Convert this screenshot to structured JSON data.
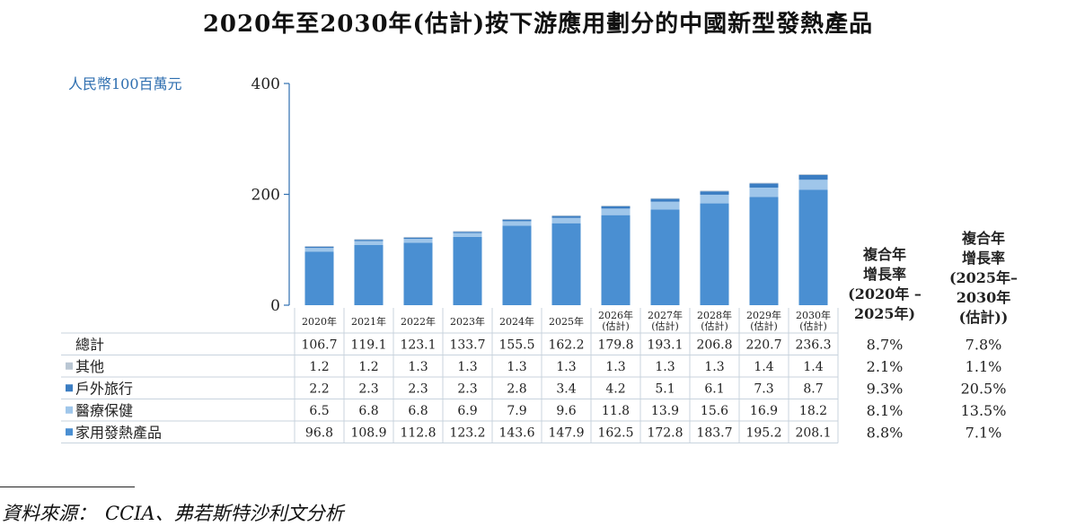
{
  "title": "2020年至2030年(估計)按下游應用劃分的中國新型發熱產品",
  "unit_label": "人民幣100百萬元",
  "cagr_headers": [
    [
      "複合年",
      "增長率",
      "(2020年 –",
      "2025年)"
    ],
    [
      "複合年",
      "增長率",
      "(2025年–",
      "2030年",
      "(估計))"
    ]
  ],
  "source": {
    "label": "資料來源：",
    "text": "CCIA、弗若斯特沙利文分析"
  },
  "colors": {
    "家用發熱產品": "#4a8fd2",
    "醫療保健": "#9fc6ea",
    "戶外旅行": "#3b7dc2",
    "其他": "#b9c6d3",
    "axis": "#2f6fb0",
    "table_line": "#c8d3de"
  },
  "chart_data": {
    "type": "bar",
    "stacked": true,
    "categories": [
      "2020年",
      "2021年",
      "2022年",
      "2023年",
      "2024年",
      "2025年",
      "2026年(估計)",
      "2027年(估計)",
      "2028年(估計)",
      "2029年(估計)",
      "2030年(估計)"
    ],
    "ylim": [
      0,
      400
    ],
    "yticks": [
      0,
      200,
      400
    ],
    "series": [
      {
        "name": "家用發熱產品",
        "values": [
          96.8,
          108.9,
          112.8,
          123.2,
          143.6,
          147.9,
          162.5,
          172.8,
          183.7,
          195.2,
          208.1
        ],
        "cagr": [
          "8.8%",
          "7.1%"
        ]
      },
      {
        "name": "醫療保健",
        "values": [
          6.5,
          6.8,
          6.8,
          6.9,
          7.9,
          9.6,
          11.8,
          13.9,
          15.6,
          16.9,
          18.2
        ],
        "cagr": [
          "8.1%",
          "13.5%"
        ]
      },
      {
        "name": "戶外旅行",
        "values": [
          2.2,
          2.3,
          2.3,
          2.3,
          2.8,
          3.4,
          4.2,
          5.1,
          6.1,
          7.3,
          8.7
        ],
        "cagr": [
          "9.3%",
          "20.5%"
        ]
      },
      {
        "name": "其他",
        "values": [
          1.2,
          1.2,
          1.3,
          1.3,
          1.3,
          1.3,
          1.3,
          1.3,
          1.3,
          1.4,
          1.4
        ],
        "cagr": [
          "2.1%",
          "1.1%"
        ]
      }
    ],
    "total": {
      "name": "總計",
      "values": [
        106.7,
        119.1,
        123.1,
        133.7,
        155.5,
        162.2,
        179.8,
        193.1,
        206.8,
        220.7,
        236.3
      ],
      "cagr": [
        "8.7%",
        "7.8%"
      ]
    },
    "table_row_order": [
      "總計",
      "其他",
      "戶外旅行",
      "醫療保健",
      "家用發熱產品"
    ]
  }
}
